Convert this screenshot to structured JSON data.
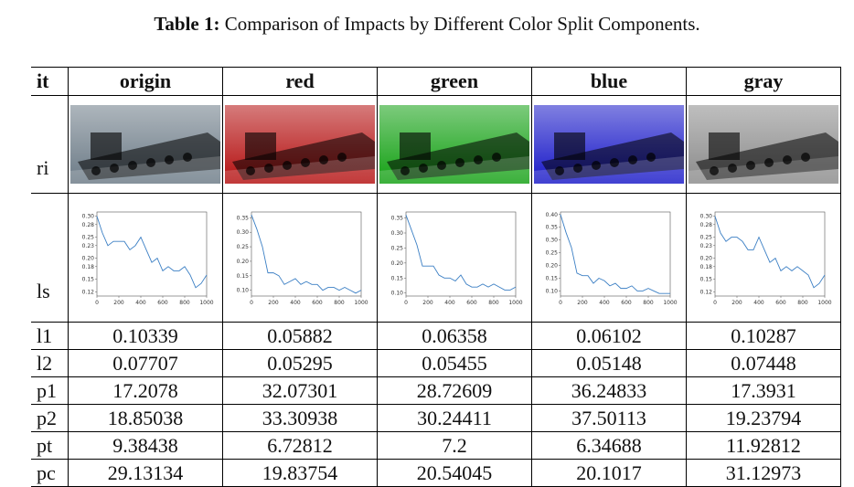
{
  "caption": {
    "label": "Table 1:",
    "text": "Comparison of Impacts by Different Color Split Components."
  },
  "table": {
    "corner": "it",
    "columns": [
      {
        "name": "origin",
        "tint": "#6b7a86"
      },
      {
        "name": "red",
        "tint": "#b40f0f"
      },
      {
        "name": "green",
        "tint": "#12a012"
      },
      {
        "name": "blue",
        "tint": "#1818c8"
      },
      {
        "name": "gray",
        "tint": "#8a8a8a"
      }
    ],
    "row_labels": {
      "ri": "ri",
      "ls": "ls"
    },
    "metrics": [
      {
        "label": "l1",
        "values": [
          "0.10339",
          "0.05882",
          "0.06358",
          "0.06102",
          "0.10287"
        ]
      },
      {
        "label": "l2",
        "values": [
          "0.07707",
          "0.05295",
          "0.05455",
          "0.05148",
          "0.07448"
        ]
      },
      {
        "label": "p1",
        "values": [
          "17.2078",
          "32.07301",
          "28.72609",
          "36.24833",
          "17.3931"
        ]
      },
      {
        "label": "p2",
        "values": [
          "18.85038",
          "33.30938",
          "30.24411",
          "37.50113",
          "19.23794"
        ]
      },
      {
        "label": "pt",
        "values": [
          "9.38438",
          "6.72812",
          "7.2",
          "6.34688",
          "11.92812"
        ]
      },
      {
        "label": "pc",
        "values": [
          "29.13134",
          "19.83754",
          "20.54045",
          "20.1017",
          "31.12973"
        ]
      }
    ]
  },
  "chart_data": [
    {
      "type": "line",
      "title": "origin",
      "x": [
        0,
        50,
        100,
        150,
        200,
        250,
        300,
        350,
        400,
        450,
        500,
        550,
        600,
        650,
        700,
        750,
        800,
        850,
        900,
        950,
        1000
      ],
      "values": [
        0.3,
        0.26,
        0.23,
        0.24,
        0.24,
        0.24,
        0.22,
        0.23,
        0.25,
        0.22,
        0.19,
        0.2,
        0.17,
        0.18,
        0.17,
        0.17,
        0.18,
        0.16,
        0.13,
        0.14,
        0.16
      ],
      "yticks": [
        "0.30",
        "0.28",
        "0.25",
        "0.23",
        "0.20",
        "0.18",
        "0.15",
        "0.12"
      ],
      "ylim": [
        0.11,
        0.31
      ],
      "xticks": [
        "0",
        "200",
        "400",
        "600",
        "800",
        "1000"
      ]
    },
    {
      "type": "line",
      "title": "red",
      "x": [
        0,
        50,
        100,
        150,
        200,
        250,
        300,
        350,
        400,
        450,
        500,
        550,
        600,
        650,
        700,
        750,
        800,
        850,
        900,
        950,
        1000
      ],
      "values": [
        0.36,
        0.31,
        0.25,
        0.16,
        0.16,
        0.15,
        0.12,
        0.13,
        0.14,
        0.12,
        0.13,
        0.12,
        0.12,
        0.1,
        0.11,
        0.11,
        0.1,
        0.11,
        0.1,
        0.09,
        0.1
      ],
      "yticks": [
        "0.35",
        "0.30",
        "0.25",
        "0.20",
        "0.15",
        "0.10"
      ],
      "ylim": [
        0.08,
        0.37
      ],
      "xticks": [
        "0",
        "200",
        "400",
        "600",
        "800",
        "1000"
      ]
    },
    {
      "type": "line",
      "title": "green",
      "x": [
        0,
        50,
        100,
        150,
        200,
        250,
        300,
        350,
        400,
        450,
        500,
        550,
        600,
        650,
        700,
        750,
        800,
        850,
        900,
        950,
        1000
      ],
      "values": [
        0.36,
        0.31,
        0.26,
        0.19,
        0.19,
        0.19,
        0.16,
        0.15,
        0.15,
        0.14,
        0.16,
        0.13,
        0.12,
        0.12,
        0.13,
        0.12,
        0.13,
        0.12,
        0.11,
        0.11,
        0.12
      ],
      "yticks": [
        "0.35",
        "0.30",
        "0.25",
        "0.20",
        "0.15",
        "0.10"
      ],
      "ylim": [
        0.09,
        0.37
      ],
      "xticks": [
        "0",
        "200",
        "400",
        "600",
        "800",
        "1000"
      ]
    },
    {
      "type": "line",
      "title": "blue",
      "x": [
        0,
        50,
        100,
        150,
        200,
        250,
        300,
        350,
        400,
        450,
        500,
        550,
        600,
        650,
        700,
        750,
        800,
        850,
        900,
        950,
        1000
      ],
      "values": [
        0.4,
        0.33,
        0.27,
        0.17,
        0.16,
        0.16,
        0.13,
        0.15,
        0.14,
        0.12,
        0.13,
        0.11,
        0.11,
        0.12,
        0.1,
        0.1,
        0.11,
        0.1,
        0.09,
        0.09,
        0.09
      ],
      "yticks": [
        "0.40",
        "0.35",
        "0.30",
        "0.25",
        "0.20",
        "0.15",
        "0.10"
      ],
      "ylim": [
        0.08,
        0.41
      ],
      "xticks": [
        "0",
        "200",
        "400",
        "600",
        "800",
        "1000"
      ]
    },
    {
      "type": "line",
      "title": "gray",
      "x": [
        0,
        50,
        100,
        150,
        200,
        250,
        300,
        350,
        400,
        450,
        500,
        550,
        600,
        650,
        700,
        750,
        800,
        850,
        900,
        950,
        1000
      ],
      "values": [
        0.3,
        0.26,
        0.24,
        0.25,
        0.25,
        0.24,
        0.22,
        0.22,
        0.25,
        0.22,
        0.19,
        0.2,
        0.17,
        0.18,
        0.17,
        0.18,
        0.17,
        0.16,
        0.13,
        0.14,
        0.16
      ],
      "yticks": [
        "0.30",
        "0.28",
        "0.25",
        "0.23",
        "0.20",
        "0.18",
        "0.15",
        "0.12"
      ],
      "ylim": [
        0.11,
        0.31
      ],
      "xticks": [
        "0",
        "200",
        "400",
        "600",
        "800",
        "1000"
      ]
    }
  ]
}
